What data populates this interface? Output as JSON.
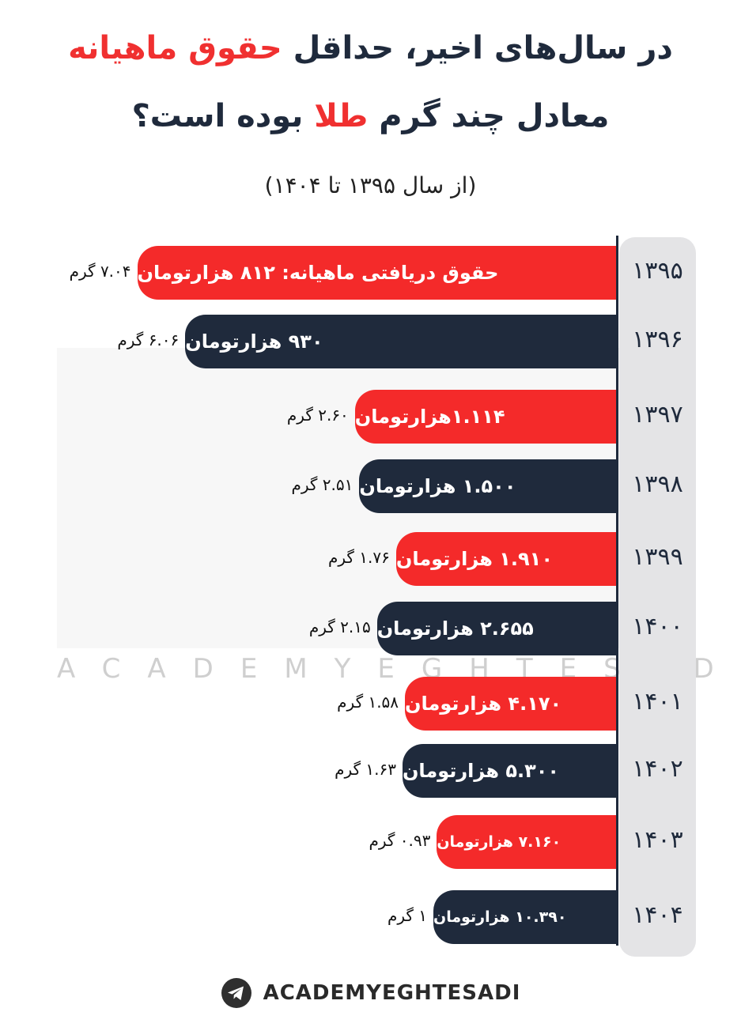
{
  "title": {
    "line1_pre": "در سال‌های اخیر، حداقل ",
    "line1_hl": "حقوق ماهیانه",
    "line2_pre": "معادل چند گرم ",
    "line2_hl": "طلا",
    "line2_post": " بوده است؟",
    "subtitle": "(از سال ۱۳۹۵ تا ۱۴۰۴)"
  },
  "watermark": "ACADEMYEGHTESADI",
  "footer": {
    "icon": "telegram-icon",
    "handle": "ACADEMYEGHTESADI"
  },
  "colors": {
    "red": "#f42a2a",
    "navy": "#1f2a3c",
    "year_bg": "#e4e4e6"
  },
  "chart_data": {
    "type": "bar",
    "orientation": "horizontal",
    "categories": [
      "۱۳۹۵",
      "۱۳۹۶",
      "۱۳۹۷",
      "۱۳۹۸",
      "۱۳۹۹",
      "۱۴۰۰",
      "۱۴۰۱",
      "۱۴۰۲",
      "۱۴۰۳",
      "۱۴۰۴"
    ],
    "salary_thousand_toman": [
      812,
      930,
      1114,
      1500,
      1910,
      2655,
      4170,
      5300,
      7160,
      10390
    ],
    "gold_grams": [
      7.04,
      6.06,
      2.6,
      2.51,
      1.76,
      2.15,
      1.58,
      1.63,
      0.93,
      1
    ],
    "bar_labels": [
      "حقوق دریافتی ماهیانه:  ۸۱۲ هزارتومان",
      "۹۳۰ هزارتومان",
      "۱.۱۱۴هزارتومان",
      "۱.۵۰۰ هزارتومان",
      "۱.۹۱۰ هزارتومان",
      "۲.۶۵۵ هزارتومان",
      "۴.۱۷۰ هزارتومان",
      "۵.۳۰۰ هزارتومان",
      "۷.۱۶۰ هزارتومان",
      "۱۰.۳۹۰ هزارتومان"
    ],
    "gram_labels": [
      "۷.۰۴ گرم",
      "۶.۰۶ گرم",
      "۲.۶۰ گرم",
      "۲.۵۱ گرم",
      "۱.۷۶ گرم",
      "۲.۱۵ گرم",
      "۱.۵۸ گرم",
      "۱.۶۳ گرم",
      "۰.۹۳ گرم",
      "۱ گرم"
    ],
    "bar_colors": [
      "red",
      "navy",
      "red",
      "navy",
      "red",
      "navy",
      "red",
      "navy",
      "red",
      "navy"
    ]
  }
}
